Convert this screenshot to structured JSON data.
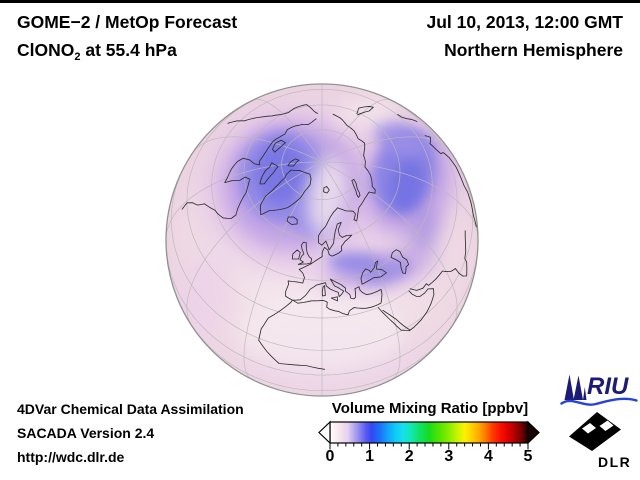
{
  "header": {
    "forecast_title": "GOME−2 / MetOp Forecast",
    "species_prefix": "ClONO",
    "species_subscript": "2",
    "species_suffix": " at 55.4 hPa",
    "datetime": "Jul 10, 2013, 12:00 GMT",
    "hemisphere": "Northern Hemisphere"
  },
  "footer": {
    "line1": "4DVar Chemical Data Assimilation",
    "line2": "SACADA Version 2.4",
    "line3": "http://wdc.dlr.de"
  },
  "colorbar": {
    "title": "Volume Mixing Ratio [ppbv]",
    "min": 0,
    "max": 5,
    "tick_labels": [
      "0",
      "1",
      "2",
      "3",
      "4",
      "5"
    ],
    "minor_ticks_per_interval": 4,
    "left_arrow_color": "#ffffff",
    "right_arrow_color": "#1c0000",
    "stops": [
      {
        "at": 0.0,
        "c": "#ffffff"
      },
      {
        "at": 0.05,
        "c": "#f6e4ec"
      },
      {
        "at": 0.09,
        "c": "#e4d0f0"
      },
      {
        "at": 0.12,
        "c": "#b9a8f0"
      },
      {
        "at": 0.15,
        "c": "#8887ef"
      },
      {
        "at": 0.18,
        "c": "#5a5cf2"
      },
      {
        "at": 0.21,
        "c": "#3347f2"
      },
      {
        "at": 0.25,
        "c": "#1e6ff8"
      },
      {
        "at": 0.29,
        "c": "#12a1fb"
      },
      {
        "at": 0.33,
        "c": "#0fc9f8"
      },
      {
        "at": 0.37,
        "c": "#17e0e9"
      },
      {
        "at": 0.41,
        "c": "#12e7b2"
      },
      {
        "at": 0.45,
        "c": "#10e268"
      },
      {
        "at": 0.5,
        "c": "#17dc1f"
      },
      {
        "at": 0.55,
        "c": "#4fe400"
      },
      {
        "at": 0.6,
        "c": "#8aec00"
      },
      {
        "at": 0.64,
        "c": "#c4f400"
      },
      {
        "at": 0.68,
        "c": "#fdf100"
      },
      {
        "at": 0.71,
        "c": "#ffd800"
      },
      {
        "at": 0.75,
        "c": "#ffab00"
      },
      {
        "at": 0.79,
        "c": "#ff7100"
      },
      {
        "at": 0.82,
        "c": "#ff3c00"
      },
      {
        "at": 0.86,
        "c": "#fb1000"
      },
      {
        "at": 0.9,
        "c": "#dd0000"
      },
      {
        "at": 0.93,
        "c": "#b20000"
      },
      {
        "at": 0.97,
        "c": "#6e0000"
      },
      {
        "at": 1.0,
        "c": "#1c0000"
      }
    ]
  },
  "logos": {
    "riu": {
      "text": "RIU",
      "color": "#1b1a74",
      "wave_color": "#2642d8"
    },
    "dlr": {
      "text": "DLR",
      "color": "#000000"
    }
  },
  "globe": {
    "projection": "orthographic",
    "view_center": "~60°N, ~8°E",
    "graticule_meridian_step_deg": 30,
    "graticule_parallel_step_deg": 15,
    "background_color": "#f3e3ea",
    "coastline_color": "#2e2e2e",
    "graticule_color": "#bdb6bd"
  },
  "chart_data": {
    "type": "heatmap",
    "title": "GOME−2 / MetOp Forecast — ClONO2 at 55.4 hPa",
    "datetime": "Jul 10, 2013, 12:00 GMT",
    "region": "Northern Hemisphere",
    "variable": "ClONO2 volume mixing ratio",
    "pressure_level_hPa": 55.4,
    "units": "ppbv",
    "colorbar_label": "Volume Mixing Ratio [ppbv]",
    "scale_range": [
      0,
      5
    ],
    "scale_ticks": [
      0,
      1,
      2,
      3,
      4,
      5
    ],
    "field_summary": [
      {
        "region": "Canadian Arctic / Baffin Bay / west Greenland",
        "approx_vmr_ppbv": 1.0
      },
      {
        "region": "Central Siberia arc (north-east quadrant)",
        "approx_vmr_ppbv": 1.0
      },
      {
        "region": "Band from British Isles over Baltic toward western Russia",
        "approx_vmr_ppbv": 0.7
      },
      {
        "region": "Lane near the pole and top limb",
        "approx_vmr_ppbv": 0.3
      },
      {
        "region": "Mid-latitude / subtropical background",
        "approx_vmr_ppbv": 0.2
      }
    ]
  }
}
